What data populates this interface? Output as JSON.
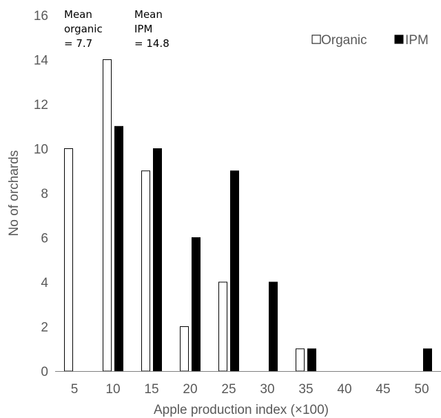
{
  "chart_data": {
    "type": "bar",
    "title": "",
    "xlabel": "Apple production index (×100)",
    "ylabel": "No of orchards",
    "categories": [
      "5",
      "10",
      "15",
      "20",
      "25",
      "30",
      "35",
      "40",
      "45",
      "50"
    ],
    "ylim": [
      0,
      16
    ],
    "yticks": [
      "0",
      "2",
      "4",
      "6",
      "8",
      "10",
      "12",
      "14",
      "16"
    ],
    "grid": false,
    "legend_position": "top-right",
    "series": [
      {
        "name": "Organic",
        "values": [
          10,
          14,
          9,
          2,
          4,
          0,
          1,
          0,
          0,
          0
        ],
        "fill": "#ffffff",
        "stroke": "#000000"
      },
      {
        "name": "IPM",
        "values": [
          0,
          11,
          10,
          6,
          9,
          4,
          1,
          0,
          0,
          1
        ],
        "fill": "#000000",
        "stroke": "#000000"
      }
    ],
    "annotations": [
      {
        "lines": [
          "Mean",
          "organic",
          "= 7.7"
        ]
      },
      {
        "lines": [
          "Mean",
          "IPM",
          "= 14.8"
        ]
      }
    ],
    "colors": {
      "axis": "#7f7f7f",
      "text": "#595959"
    }
  }
}
